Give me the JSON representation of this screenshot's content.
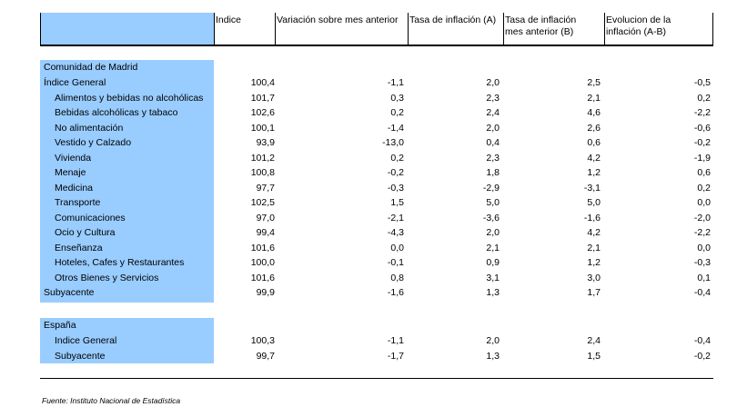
{
  "headers": [
    "Indice",
    "Variación sobre mes anterior",
    "Tasa de inflación (A)",
    "Tasa de inflación mes anterior (B)",
    "Evolucion de la inflación (A-B)"
  ],
  "header_lines": {
    "c3": [
      "Tasa de inflación",
      "mes anterior (B)"
    ],
    "c4": [
      "Evolucion de la",
      "inflación (A-B)"
    ]
  },
  "section_madrid": "Comunidad de Madrid",
  "rows_madrid": [
    {
      "label": "Índice General",
      "indent": false,
      "values": [
        "100,4",
        "-1,1",
        "2,0",
        "2,5",
        "-0,5"
      ]
    },
    {
      "label": "Alimentos y bebidas no alcohólicas",
      "indent": true,
      "values": [
        "101,7",
        "0,3",
        "2,3",
        "2,1",
        "0,2"
      ]
    },
    {
      "label": "Bebidas alcohólicas y tabaco",
      "indent": true,
      "values": [
        "102,6",
        "0,2",
        "2,4",
        "4,6",
        "-2,2"
      ]
    },
    {
      "label": "No alimentación",
      "indent": true,
      "values": [
        "100,1",
        "-1,4",
        "2,0",
        "2,6",
        "-0,6"
      ]
    },
    {
      "label": "Vestido y Calzado",
      "indent": true,
      "values": [
        "93,9",
        "-13,0",
        "0,4",
        "0,6",
        "-0,2"
      ]
    },
    {
      "label": "Vivienda",
      "indent": true,
      "values": [
        "101,2",
        "0,2",
        "2,3",
        "4,2",
        "-1,9"
      ]
    },
    {
      "label": "Menaje",
      "indent": true,
      "values": [
        "100,8",
        "-0,2",
        "1,8",
        "1,2",
        "0,6"
      ]
    },
    {
      "label": "Medicina",
      "indent": true,
      "values": [
        "97,7",
        "-0,3",
        "-2,9",
        "-3,1",
        "0,2"
      ]
    },
    {
      "label": "Transporte",
      "indent": true,
      "values": [
        "102,5",
        "1,5",
        "5,0",
        "5,0",
        "0,0"
      ]
    },
    {
      "label": "Comunicaciones",
      "indent": true,
      "values": [
        "97,0",
        "-2,1",
        "-3,6",
        "-1,6",
        "-2,0"
      ]
    },
    {
      "label": "Ocio y Cultura",
      "indent": true,
      "values": [
        "99,4",
        "-4,3",
        "2,0",
        "4,2",
        "-2,2"
      ]
    },
    {
      "label": "Enseñanza",
      "indent": true,
      "values": [
        "101,6",
        "0,0",
        "2,1",
        "2,1",
        "0,0"
      ]
    },
    {
      "label": "Hoteles, Cafes y Restaurantes",
      "indent": true,
      "values": [
        "100,0",
        "-0,1",
        "0,9",
        "1,2",
        "-0,3"
      ]
    },
    {
      "label": "Otros Bienes y Servicios",
      "indent": true,
      "values": [
        "101,6",
        "0,8",
        "3,1",
        "3,0",
        "0,1"
      ]
    },
    {
      "label": "Subyacente",
      "indent": false,
      "values": [
        "99,9",
        "-1,6",
        "1,3",
        "1,7",
        "-0,4"
      ]
    }
  ],
  "section_espana": "España",
  "rows_espana": [
    {
      "label": "Indice General",
      "indent": true,
      "values": [
        "100,3",
        "-1,1",
        "2,0",
        "2,4",
        "-0,4"
      ]
    },
    {
      "label": "Subyacente",
      "indent": true,
      "values": [
        "99,7",
        "-1,7",
        "1,3",
        "1,5",
        "-0,2"
      ]
    }
  ],
  "source": "Fuente: Instituto Nacional de Estadística"
}
